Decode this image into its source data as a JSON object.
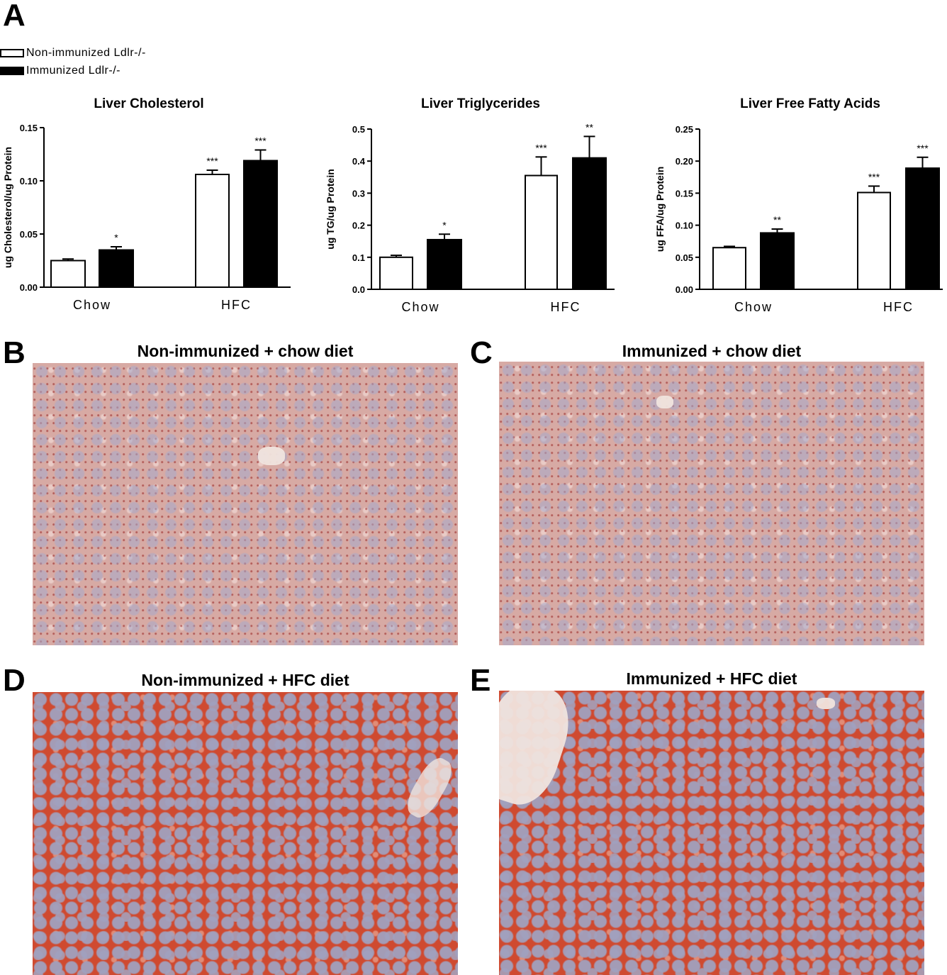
{
  "panels": {
    "a": "A",
    "b": "B",
    "c": "C",
    "d": "D",
    "e": "E"
  },
  "legend": [
    {
      "label": "Non-immunized Ldlr-/-",
      "fill": "#ffffff"
    },
    {
      "label": "Immunized Ldlr-/-",
      "fill": "#000000"
    }
  ],
  "chart_data": [
    {
      "type": "bar",
      "title": "Liver Cholesterol",
      "ylabel": "ug Cholesterol/ug Protein",
      "categories": [
        "Chow",
        "HFC"
      ],
      "ylim": [
        0,
        0.15
      ],
      "yticks": [
        "0.00",
        "0.05",
        "0.10",
        "0.15"
      ],
      "series": [
        {
          "name": "Non-immunized Ldlr-/-",
          "values": [
            0.025,
            0.106
          ],
          "errors": [
            0.0015,
            0.004
          ],
          "sig": [
            "",
            "***"
          ]
        },
        {
          "name": "Immunized Ldlr-/-",
          "values": [
            0.035,
            0.119
          ],
          "errors": [
            0.003,
            0.01
          ],
          "sig": [
            "*",
            "***"
          ]
        }
      ]
    },
    {
      "type": "bar",
      "title": "Liver Triglycerides",
      "ylabel": "ug TG/ug Protein",
      "categories": [
        "Chow",
        "HFC"
      ],
      "ylim": [
        0,
        0.5
      ],
      "yticks": [
        "0.0",
        "0.1",
        "0.2",
        "0.3",
        "0.4",
        "0.5"
      ],
      "series": [
        {
          "name": "Non-immunized Ldlr-/-",
          "values": [
            0.1,
            0.355
          ],
          "errors": [
            0.006,
            0.058
          ],
          "sig": [
            "",
            "***"
          ]
        },
        {
          "name": "Immunized Ldlr-/-",
          "values": [
            0.155,
            0.41
          ],
          "errors": [
            0.017,
            0.067
          ],
          "sig": [
            "*",
            "**"
          ]
        }
      ]
    },
    {
      "type": "bar",
      "title": "Liver Free Fatty Acids",
      "ylabel": "ug FFA/ug Protein",
      "categories": [
        "Chow",
        "HFC"
      ],
      "ylim": [
        0,
        0.25
      ],
      "yticks": [
        "0.00",
        "0.05",
        "0.10",
        "0.15",
        "0.20",
        "0.25"
      ],
      "series": [
        {
          "name": "Non-immunized Ldlr-/-",
          "values": [
            0.065,
            0.151
          ],
          "errors": [
            0.002,
            0.01
          ],
          "sig": [
            "",
            "***"
          ]
        },
        {
          "name": "Immunized Ldlr-/-",
          "values": [
            0.088,
            0.189
          ],
          "errors": [
            0.006,
            0.017
          ],
          "sig": [
            "**",
            "***"
          ]
        }
      ]
    }
  ],
  "images": {
    "b_title": "Non-immunized + chow diet",
    "c_title": "Immunized + chow diet",
    "d_title": "Non-immunized + HFC diet",
    "e_title": "Immunized + HFC diet"
  }
}
